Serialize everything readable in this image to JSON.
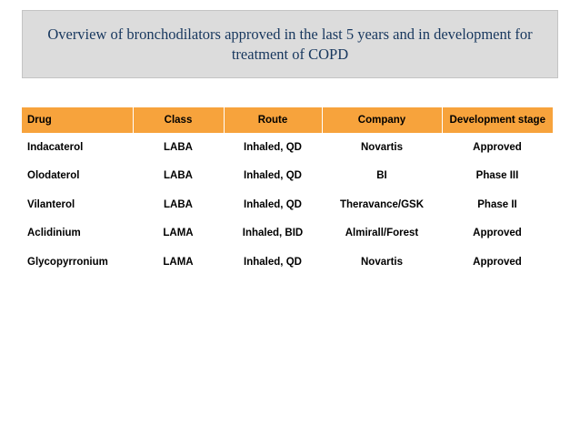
{
  "title": "Overview of bronchodilators approved in the last 5 years and in development for treatment of COPD",
  "table": {
    "headers": [
      "Drug",
      "Class",
      "Route",
      "Company",
      "Development stage"
    ],
    "rows": [
      [
        "Indacaterol",
        "LABA",
        "Inhaled, QD",
        "Novartis",
        "Approved"
      ],
      [
        "Olodaterol",
        "LABA",
        "Inhaled, QD",
        "BI",
        "Phase III"
      ],
      [
        "Vilanterol",
        "LABA",
        "Inhaled, QD",
        "Theravance/GSK",
        "Phase II"
      ],
      [
        "Aclidinium",
        "LAMA",
        "Inhaled, BID",
        "Almirall/Forest",
        "Approved"
      ],
      [
        "Glycopyrronium",
        "LAMA",
        "Inhaled, QD",
        "Novartis",
        "Approved"
      ]
    ]
  },
  "colors": {
    "title_background": "#dcdcdc",
    "title_text": "#17375e",
    "header_background": "#f7a33c"
  }
}
